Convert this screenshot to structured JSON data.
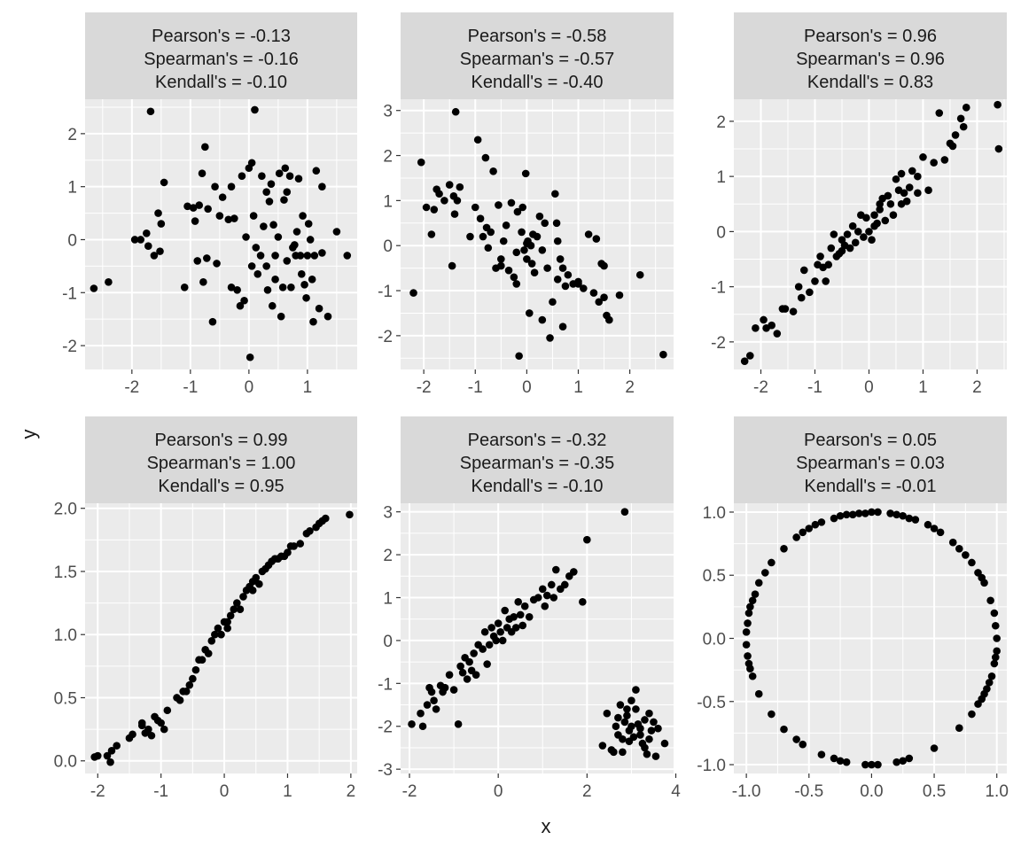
{
  "figure": {
    "xlabel": "x",
    "ylabel": "y"
  },
  "style": {
    "panel_bg": "#ebebeb",
    "strip_bg": "#d9d9d9",
    "grid": "#ffffff",
    "point": "#000000",
    "text": "#1a1a1a",
    "tick_text": "#4d4d4d"
  },
  "chart_data": [
    {
      "type": "scatter",
      "strip": [
        "Pearson's = -0.13",
        "Spearman's = -0.16",
        "Kendall's = -0.10"
      ],
      "xlim": [
        -2.8,
        1.85
      ],
      "ylim": [
        -2.45,
        2.65
      ],
      "xticks": [
        -2,
        -1,
        0,
        1
      ],
      "xtick_labels": [
        "-2",
        "-1",
        "0",
        "1"
      ],
      "yticks": [
        -2,
        -1,
        0,
        1,
        2
      ],
      "ytick_labels": [
        "-2",
        "-1",
        "0",
        "1",
        "2"
      ],
      "x": [
        -2.65,
        -2.4,
        -1.95,
        -1.85,
        -1.75,
        -1.72,
        -1.68,
        -1.62,
        -1.55,
        -1.52,
        -1.5,
        -1.45,
        -1.05,
        -0.95,
        -0.92,
        -0.88,
        -0.8,
        -0.78,
        -0.75,
        -0.72,
        -0.7,
        -0.62,
        -0.55,
        -0.5,
        -0.45,
        -0.35,
        -0.3,
        -0.25,
        -0.2,
        -0.15,
        -0.12,
        -0.08,
        -0.05,
        0.0,
        0.02,
        0.05,
        0.08,
        0.1,
        0.12,
        0.15,
        0.2,
        0.22,
        0.25,
        0.3,
        0.32,
        0.35,
        0.38,
        0.4,
        0.42,
        0.45,
        0.5,
        0.52,
        0.55,
        0.58,
        0.6,
        0.62,
        0.65,
        0.7,
        0.72,
        0.75,
        0.8,
        0.82,
        0.85,
        0.88,
        0.9,
        0.92,
        0.95,
        0.98,
        1.0,
        1.02,
        1.05,
        1.08,
        1.1,
        1.12,
        1.15,
        1.2,
        1.25,
        1.35,
        1.5,
        1.68,
        -1.1,
        -0.58,
        -0.3,
        0.3,
        0.45,
        0.65,
        0.05,
        1.25,
        -0.85,
        0.78
      ],
      "y": [
        -0.92,
        -0.8,
        0.0,
        0.0,
        0.12,
        -0.12,
        2.42,
        -0.3,
        0.5,
        -0.22,
        0.3,
        1.08,
        0.63,
        0.6,
        0.35,
        -0.4,
        1.25,
        -0.8,
        1.75,
        -0.35,
        0.58,
        -1.55,
        -0.45,
        0.45,
        0.8,
        0.38,
        1.0,
        0.4,
        -0.95,
        -1.25,
        1.2,
        -1.15,
        0.05,
        1.35,
        -2.22,
        1.45,
        0.45,
        2.45,
        -0.15,
        -0.65,
        -0.3,
        1.2,
        0.25,
        -0.5,
        -0.95,
        0.72,
        1.05,
        -1.25,
        0.28,
        -0.75,
        0.05,
        1.25,
        -1.45,
        -0.9,
        0.75,
        1.35,
        -0.4,
        1.2,
        -0.9,
        -0.15,
        -0.3,
        0.15,
        1.15,
        -0.3,
        -0.65,
        0.45,
        -0.85,
        -1.1,
        -0.3,
        0.3,
        0.0,
        -0.75,
        -1.55,
        -0.3,
        1.3,
        -1.3,
        -0.25,
        -1.45,
        0.15,
        -0.3,
        -0.9,
        1.0,
        -0.9,
        0.9,
        -0.3,
        0.9,
        -0.5,
        1.0,
        0.65,
        -0.1
      ]
    },
    {
      "type": "scatter",
      "strip": [
        "Pearson's = -0.58",
        "Spearman's = -0.57",
        "Kendall's = -0.40"
      ],
      "xlim": [
        -2.45,
        2.85
      ],
      "ylim": [
        -2.75,
        3.25
      ],
      "xticks": [
        -2,
        -1,
        0,
        1,
        2
      ],
      "xtick_labels": [
        "-2",
        "-1",
        "0",
        "1",
        "2"
      ],
      "yticks": [
        -2,
        -1,
        0,
        1,
        2,
        3
      ],
      "ytick_labels": [
        "-2",
        "-1",
        "0",
        "1",
        "2",
        "3"
      ],
      "x": [
        -2.2,
        -2.05,
        -1.95,
        -1.85,
        -1.8,
        -1.75,
        -1.7,
        -1.6,
        -1.5,
        -1.45,
        -1.42,
        -1.4,
        -1.38,
        -1.35,
        -1.3,
        -1.1,
        -1.0,
        -0.95,
        -0.9,
        -0.85,
        -0.8,
        -0.78,
        -0.75,
        -0.7,
        -0.65,
        -0.6,
        -0.55,
        -0.5,
        -0.45,
        -0.4,
        -0.35,
        -0.3,
        -0.25,
        -0.2,
        -0.18,
        -0.15,
        -0.1,
        -0.08,
        -0.05,
        -0.02,
        0.0,
        0.02,
        0.05,
        0.08,
        0.1,
        0.12,
        0.15,
        0.2,
        0.25,
        0.3,
        0.35,
        0.4,
        0.45,
        0.5,
        0.55,
        0.58,
        0.6,
        0.65,
        0.7,
        0.75,
        0.8,
        0.9,
        1.0,
        1.1,
        1.2,
        1.3,
        1.35,
        1.4,
        1.45,
        1.5,
        1.55,
        1.6,
        1.8,
        2.2,
        2.65,
        0.0,
        -0.5,
        0.3,
        0.6,
        -0.2,
        0.7,
        1.0,
        1.5
      ],
      "y": [
        -1.05,
        1.85,
        0.85,
        0.25,
        0.8,
        1.25,
        1.15,
        1.0,
        1.35,
        -0.45,
        1.1,
        0.7,
        2.97,
        1.0,
        1.3,
        0.2,
        0.85,
        2.35,
        0.6,
        0.2,
        1.95,
        0.4,
        -0.05,
        0.3,
        1.65,
        -0.5,
        0.9,
        -0.3,
        0.1,
        0.45,
        -0.55,
        0.95,
        -0.7,
        -0.85,
        0.75,
        -2.45,
        0.3,
        0.85,
        -0.1,
        1.6,
        -0.3,
        0.1,
        -1.5,
        0.0,
        -0.4,
        0.25,
        -0.6,
        0.2,
        0.65,
        -1.65,
        0.5,
        -0.5,
        -2.05,
        -1.25,
        1.15,
        0.5,
        -0.75,
        -0.3,
        -1.8,
        -0.9,
        -0.65,
        -0.85,
        -0.8,
        -0.95,
        0.25,
        -1.05,
        0.15,
        -1.25,
        -0.4,
        -0.45,
        -1.55,
        -1.65,
        -1.1,
        -0.65,
        -2.42,
        0.05,
        -0.45,
        -0.1,
        0.1,
        -0.15,
        -0.5,
        -0.85,
        -1.15
      ]
    },
    {
      "type": "scatter",
      "strip": [
        "Pearson's = 0.96",
        "Spearman's = 0.96",
        "Kendall's = 0.83"
      ],
      "xlim": [
        -2.5,
        2.55
      ],
      "ylim": [
        -2.5,
        2.4
      ],
      "xticks": [
        -2,
        -1,
        0,
        1,
        2
      ],
      "xtick_labels": [
        "-2",
        "-1",
        "0",
        "1",
        "2"
      ],
      "yticks": [
        -2,
        -1,
        0,
        1,
        2
      ],
      "ytick_labels": [
        "-2",
        "-1",
        "0",
        "1",
        "2"
      ],
      "x": [
        -2.3,
        -2.2,
        -2.1,
        -1.95,
        -1.9,
        -1.8,
        -1.7,
        -1.6,
        -1.55,
        -1.4,
        -1.3,
        -1.2,
        -1.1,
        -1.0,
        -0.95,
        -0.9,
        -0.85,
        -0.8,
        -0.75,
        -0.7,
        -0.65,
        -0.6,
        -0.55,
        -0.5,
        -0.45,
        -0.4,
        -0.35,
        -0.3,
        -0.25,
        -0.2,
        -0.15,
        -0.1,
        -0.05,
        0.0,
        0.05,
        0.1,
        0.15,
        0.2,
        0.25,
        0.3,
        0.35,
        0.4,
        0.45,
        0.5,
        0.55,
        0.6,
        0.65,
        0.7,
        0.75,
        0.8,
        0.9,
        1.0,
        1.1,
        1.2,
        1.3,
        1.4,
        1.5,
        1.55,
        1.6,
        1.7,
        1.75,
        1.8,
        2.38,
        2.4,
        0.2,
        -0.5,
        0.6,
        0.9,
        -1.25,
        0.1
      ],
      "y": [
        -2.35,
        -2.25,
        -1.75,
        -1.6,
        -1.75,
        -1.7,
        -1.85,
        -1.4,
        -1.4,
        -1.45,
        -1.0,
        -0.7,
        -1.1,
        -0.9,
        -0.6,
        -0.45,
        -0.65,
        -0.9,
        -0.6,
        -0.3,
        -0.05,
        -0.45,
        -0.4,
        -0.15,
        -0.25,
        -0.05,
        -0.3,
        0.1,
        -0.2,
        0.0,
        0.3,
        -0.1,
        0.25,
        0.0,
        -0.15,
        0.3,
        0.15,
        0.5,
        0.6,
        0.2,
        0.65,
        0.5,
        0.3,
        0.95,
        0.75,
        1.05,
        0.7,
        0.55,
        0.8,
        1.1,
        0.7,
        1.35,
        0.75,
        1.25,
        2.15,
        1.3,
        1.6,
        1.55,
        1.75,
        2.05,
        1.9,
        2.25,
        2.3,
        1.5,
        0.4,
        -0.35,
        0.5,
        1.0,
        -1.2,
        0.1
      ]
    },
    {
      "type": "scatter",
      "strip": [
        "Pearson's = 0.99",
        "Spearman's = 1.00",
        "Kendall's = 0.95"
      ],
      "xlim": [
        -2.2,
        2.1
      ],
      "ylim": [
        -0.1,
        2.04
      ],
      "xticks": [
        -2,
        -1,
        0,
        1,
        2
      ],
      "xtick_labels": [
        "-2",
        "-1",
        "0",
        "1",
        "2"
      ],
      "yticks": [
        0.0,
        0.5,
        1.0,
        1.5,
        2.0
      ],
      "ytick_labels": [
        "0.0",
        "0.5",
        "1.0",
        "1.5",
        "2.0"
      ],
      "x": [
        -2.05,
        -2.0,
        -1.85,
        -1.8,
        -1.78,
        -1.7,
        -1.5,
        -1.45,
        -1.3,
        -1.25,
        -1.2,
        -1.15,
        -1.1,
        -1.0,
        -0.95,
        -0.9,
        -0.7,
        -0.65,
        -0.6,
        -0.55,
        -0.5,
        -0.45,
        -0.4,
        -0.35,
        -0.3,
        -0.25,
        -0.2,
        -0.15,
        -0.1,
        -0.05,
        0.0,
        0.05,
        0.1,
        0.15,
        0.2,
        0.25,
        0.3,
        0.35,
        0.4,
        0.45,
        0.5,
        0.55,
        0.6,
        0.65,
        0.7,
        0.75,
        0.8,
        0.85,
        0.9,
        0.95,
        1.0,
        1.05,
        1.1,
        1.2,
        1.3,
        1.35,
        1.45,
        1.5,
        1.55,
        1.6,
        1.98,
        -1.3,
        -0.75,
        0.05,
        0.45,
        -1.05
      ],
      "y": [
        0.03,
        0.04,
        0.04,
        -0.01,
        0.08,
        0.12,
        0.18,
        0.21,
        0.3,
        0.22,
        0.25,
        0.2,
        0.35,
        0.3,
        0.25,
        0.4,
        0.48,
        0.55,
        0.55,
        0.6,
        0.65,
        0.72,
        0.8,
        0.8,
        0.88,
        0.85,
        0.95,
        1.0,
        1.05,
        1.0,
        1.1,
        1.05,
        1.15,
        1.2,
        1.25,
        1.2,
        1.3,
        1.35,
        1.38,
        1.42,
        1.45,
        1.4,
        1.5,
        1.52,
        1.55,
        1.58,
        1.6,
        1.6,
        1.62,
        1.62,
        1.65,
        1.7,
        1.7,
        1.72,
        1.8,
        1.82,
        1.85,
        1.88,
        1.9,
        1.92,
        1.95,
        0.28,
        0.5,
        1.1,
        1.35,
        0.32
      ]
    },
    {
      "type": "scatter",
      "strip": [
        "Pearson's = -0.32",
        "Spearman's = -0.35",
        "Kendall's = -0.10"
      ],
      "xlim": [
        -2.2,
        3.95
      ],
      "ylim": [
        -3.1,
        3.2
      ],
      "xticks": [
        -2,
        0,
        2,
        4
      ],
      "xtick_labels": [
        "-2",
        "0",
        "2",
        "4"
      ],
      "yticks": [
        -3,
        -2,
        -1,
        0,
        1,
        2,
        3
      ],
      "ytick_labels": [
        "-3",
        "-2",
        "-1",
        "0",
        "1",
        "2",
        "3"
      ],
      "x": [
        -1.95,
        -1.75,
        -1.7,
        -1.6,
        -1.55,
        -1.5,
        -1.45,
        -1.4,
        -1.3,
        -1.25,
        -1.2,
        -1.1,
        -1.0,
        -0.9,
        -0.85,
        -0.8,
        -0.75,
        -0.7,
        -0.65,
        -0.6,
        -0.55,
        -0.5,
        -0.45,
        -0.35,
        -0.3,
        -0.25,
        -0.2,
        -0.15,
        -0.1,
        -0.05,
        0.0,
        0.05,
        0.1,
        0.15,
        0.2,
        0.25,
        0.3,
        0.35,
        0.4,
        0.45,
        0.5,
        0.55,
        0.6,
        0.7,
        0.8,
        0.9,
        1.0,
        1.05,
        1.1,
        1.2,
        1.25,
        1.3,
        1.4,
        1.5,
        1.6,
        1.7,
        1.9,
        2.0,
        2.85,
        2.35,
        2.45,
        2.55,
        2.6,
        2.65,
        2.7,
        2.75,
        2.8,
        2.85,
        2.9,
        2.95,
        3.0,
        3.05,
        3.1,
        3.15,
        3.2,
        3.25,
        3.3,
        3.35,
        3.4,
        3.45,
        3.5,
        3.55,
        3.6,
        3.75,
        2.7,
        2.9,
        3.1,
        3.3,
        2.8,
        3.0,
        3.2,
        3.4,
        2.95
      ],
      "y": [
        -1.95,
        -1.7,
        -2.0,
        -1.5,
        -1.1,
        -1.2,
        -1.4,
        -1.6,
        -1.05,
        -1.2,
        -1.1,
        -0.8,
        -1.15,
        -1.95,
        -0.6,
        -0.75,
        -0.4,
        -0.9,
        -0.5,
        -0.7,
        -0.3,
        -0.8,
        -0.1,
        -0.2,
        0.2,
        -0.55,
        -0.1,
        0.3,
        0.1,
        0.0,
        0.4,
        0.2,
        0.0,
        0.7,
        0.3,
        0.5,
        0.2,
        0.55,
        0.3,
        0.9,
        0.6,
        0.35,
        0.8,
        0.55,
        0.95,
        1.0,
        1.2,
        0.8,
        1.05,
        1.3,
        1.0,
        1.65,
        1.2,
        1.3,
        1.5,
        1.6,
        0.9,
        2.35,
        3.0,
        -2.45,
        -1.7,
        -2.55,
        -2.6,
        -2.0,
        -1.8,
        -1.5,
        -2.3,
        -1.9,
        -1.6,
        -2.1,
        -1.4,
        -2.25,
        -1.15,
        -1.95,
        -2.05,
        -2.4,
        -1.85,
        -2.65,
        -2.3,
        -2.1,
        -1.9,
        -2.7,
        -2.05,
        -2.4,
        -2.2,
        -1.75,
        -1.6,
        -2.5,
        -2.6,
        -2.0,
        -2.2,
        -1.7,
        -2.35
      ]
    },
    {
      "type": "scatter",
      "strip": [
        "Pearson's = 0.05",
        "Spearman's = 0.03",
        "Kendall's = -0.01"
      ],
      "xlim": [
        -1.1,
        1.08
      ],
      "ylim": [
        -1.07,
        1.07
      ],
      "xticks": [
        -1.0,
        -0.5,
        0.0,
        0.5,
        1.0
      ],
      "xtick_labels": [
        "-1.0",
        "-0.5",
        "0.0",
        "0.5",
        "1.0"
      ],
      "yticks": [
        -1.0,
        -0.5,
        0.0,
        0.5,
        1.0
      ],
      "ytick_labels": [
        "-1.0",
        "-0.5",
        "0.0",
        "0.5",
        "1.0"
      ],
      "x": [
        -0.2,
        -0.15,
        -0.1,
        -0.05,
        0.0,
        0.05,
        0.15,
        0.2,
        0.25,
        0.3,
        0.35,
        0.45,
        0.5,
        0.55,
        0.65,
        0.7,
        0.75,
        0.8,
        0.85,
        0.88,
        0.9,
        0.95,
        0.98,
        0.99,
        1.0,
        1.0,
        0.99,
        0.98,
        0.96,
        0.94,
        0.92,
        0.9,
        0.88,
        0.85,
        0.8,
        0.7,
        0.5,
        0.3,
        0.25,
        0.2,
        0.05,
        0.0,
        -0.05,
        -0.2,
        -0.25,
        -0.3,
        -0.4,
        -0.55,
        -0.6,
        -0.7,
        -0.8,
        -0.9,
        -0.95,
        -0.97,
        -0.98,
        -0.99,
        -1.0,
        -1.0,
        -0.99,
        -0.98,
        -0.97,
        -0.95,
        -0.93,
        -0.9,
        -0.85,
        -0.8,
        -0.7,
        -0.6,
        -0.55,
        -0.5,
        -0.45,
        -0.4,
        -0.3,
        -0.25
      ],
      "y": [
        0.98,
        0.98,
        0.99,
        0.99,
        1.0,
        1.0,
        0.99,
        0.98,
        0.97,
        0.95,
        0.94,
        0.9,
        0.87,
        0.84,
        0.76,
        0.71,
        0.66,
        0.6,
        0.52,
        0.48,
        0.44,
        0.3,
        0.2,
        0.1,
        0.0,
        -0.1,
        -0.15,
        -0.2,
        -0.3,
        -0.35,
        -0.4,
        -0.44,
        -0.48,
        -0.52,
        -0.6,
        -0.71,
        -0.87,
        -0.95,
        -0.97,
        -0.98,
        -1.0,
        -1.0,
        -1.0,
        -0.98,
        -0.97,
        -0.95,
        -0.92,
        -0.84,
        -0.8,
        -0.72,
        -0.6,
        -0.44,
        -0.3,
        -0.24,
        -0.2,
        -0.14,
        -0.05,
        0.05,
        0.12,
        0.2,
        0.25,
        0.3,
        0.35,
        0.44,
        0.52,
        0.6,
        0.71,
        0.8,
        0.84,
        0.87,
        0.9,
        0.92,
        0.95,
        0.97
      ]
    }
  ]
}
